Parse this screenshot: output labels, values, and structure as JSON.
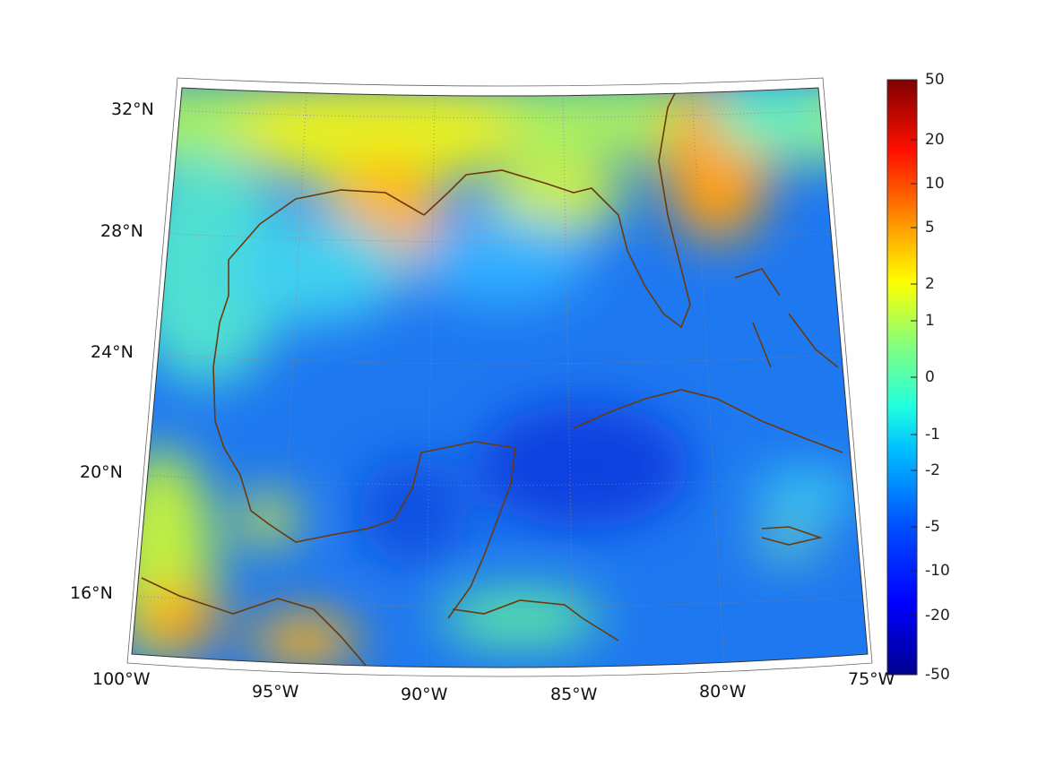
{
  "map": {
    "projection": "lambert-conic",
    "lat_labels": [
      "32°N",
      "28°N",
      "24°N",
      "20°N",
      "16°N"
    ],
    "lon_labels": [
      "100°W",
      "95°W",
      "90°W",
      "85°W",
      "80°W",
      "75°W"
    ],
    "coastline_color": "#6b3a0a",
    "grid": "dotted"
  },
  "colorbar": {
    "colormap": "jet",
    "ticks": [
      "50",
      "20",
      "10",
      "5",
      "2",
      "1",
      "0",
      "-1",
      "-2",
      "-5",
      "-10",
      "-20",
      "-50"
    ],
    "range": [
      -50,
      50
    ]
  }
}
